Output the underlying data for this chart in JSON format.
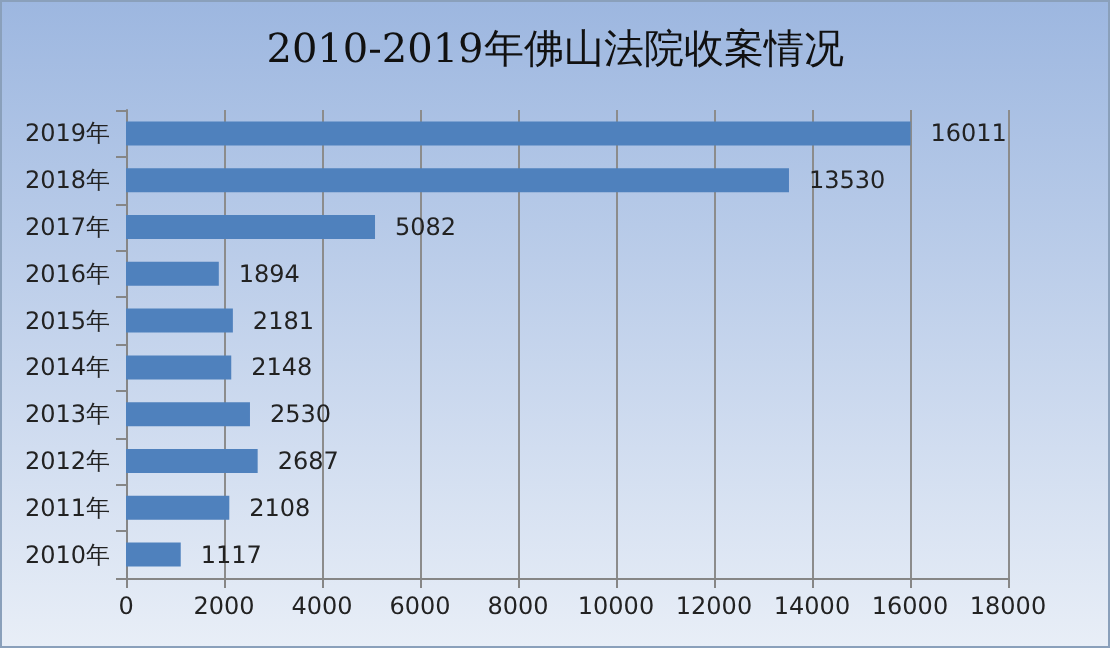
{
  "chart_data": {
    "type": "bar",
    "orientation": "horizontal",
    "title": "2010-2019年佛山法院收案情况",
    "categories": [
      "2019年",
      "2018年",
      "2017年",
      "2016年",
      "2015年",
      "2014年",
      "2013年",
      "2012年",
      "2011年",
      "2010年"
    ],
    "values": [
      16011,
      13530,
      5082,
      1894,
      2181,
      2148,
      2530,
      2687,
      2108,
      1117
    ],
    "color": "#4f81bd",
    "xlim": [
      0,
      18000
    ],
    "xticks": [
      0,
      2000,
      4000,
      6000,
      8000,
      10000,
      12000,
      14000,
      16000,
      18000
    ],
    "grid": "x",
    "data_labels": true
  }
}
